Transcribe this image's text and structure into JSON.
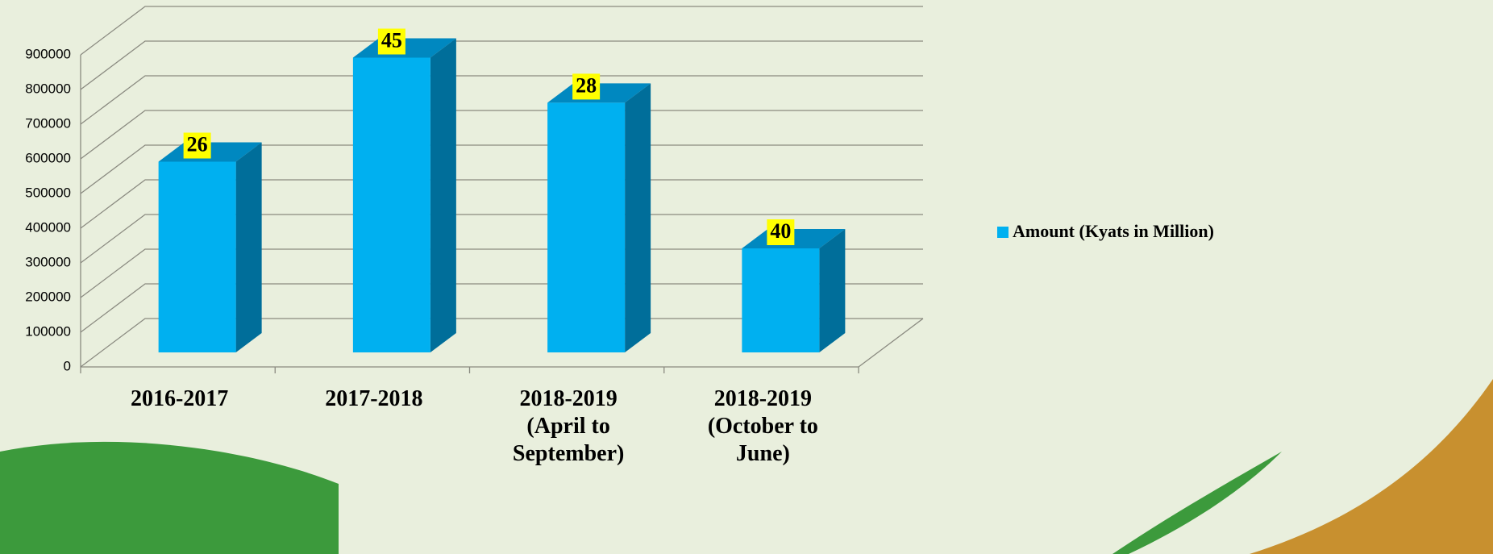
{
  "chart_data": {
    "type": "bar3d",
    "categories": [
      "2016-2017",
      "2017-2018",
      "2018-2019 (April to September)",
      "2018-2019 (October to June)"
    ],
    "series": [
      {
        "name": "Amount (Kyats in Million)",
        "color": "#00b0f0",
        "values": [
          550000,
          850000,
          720000,
          300000
        ]
      }
    ],
    "bar_labels": [
      26,
      45,
      28,
      40
    ],
    "ylim": [
      0,
      900000
    ],
    "yticks": [
      0,
      100000,
      200000,
      300000,
      400000,
      500000,
      600000,
      700000,
      800000,
      900000
    ],
    "grid": true,
    "legend": "right"
  }
}
